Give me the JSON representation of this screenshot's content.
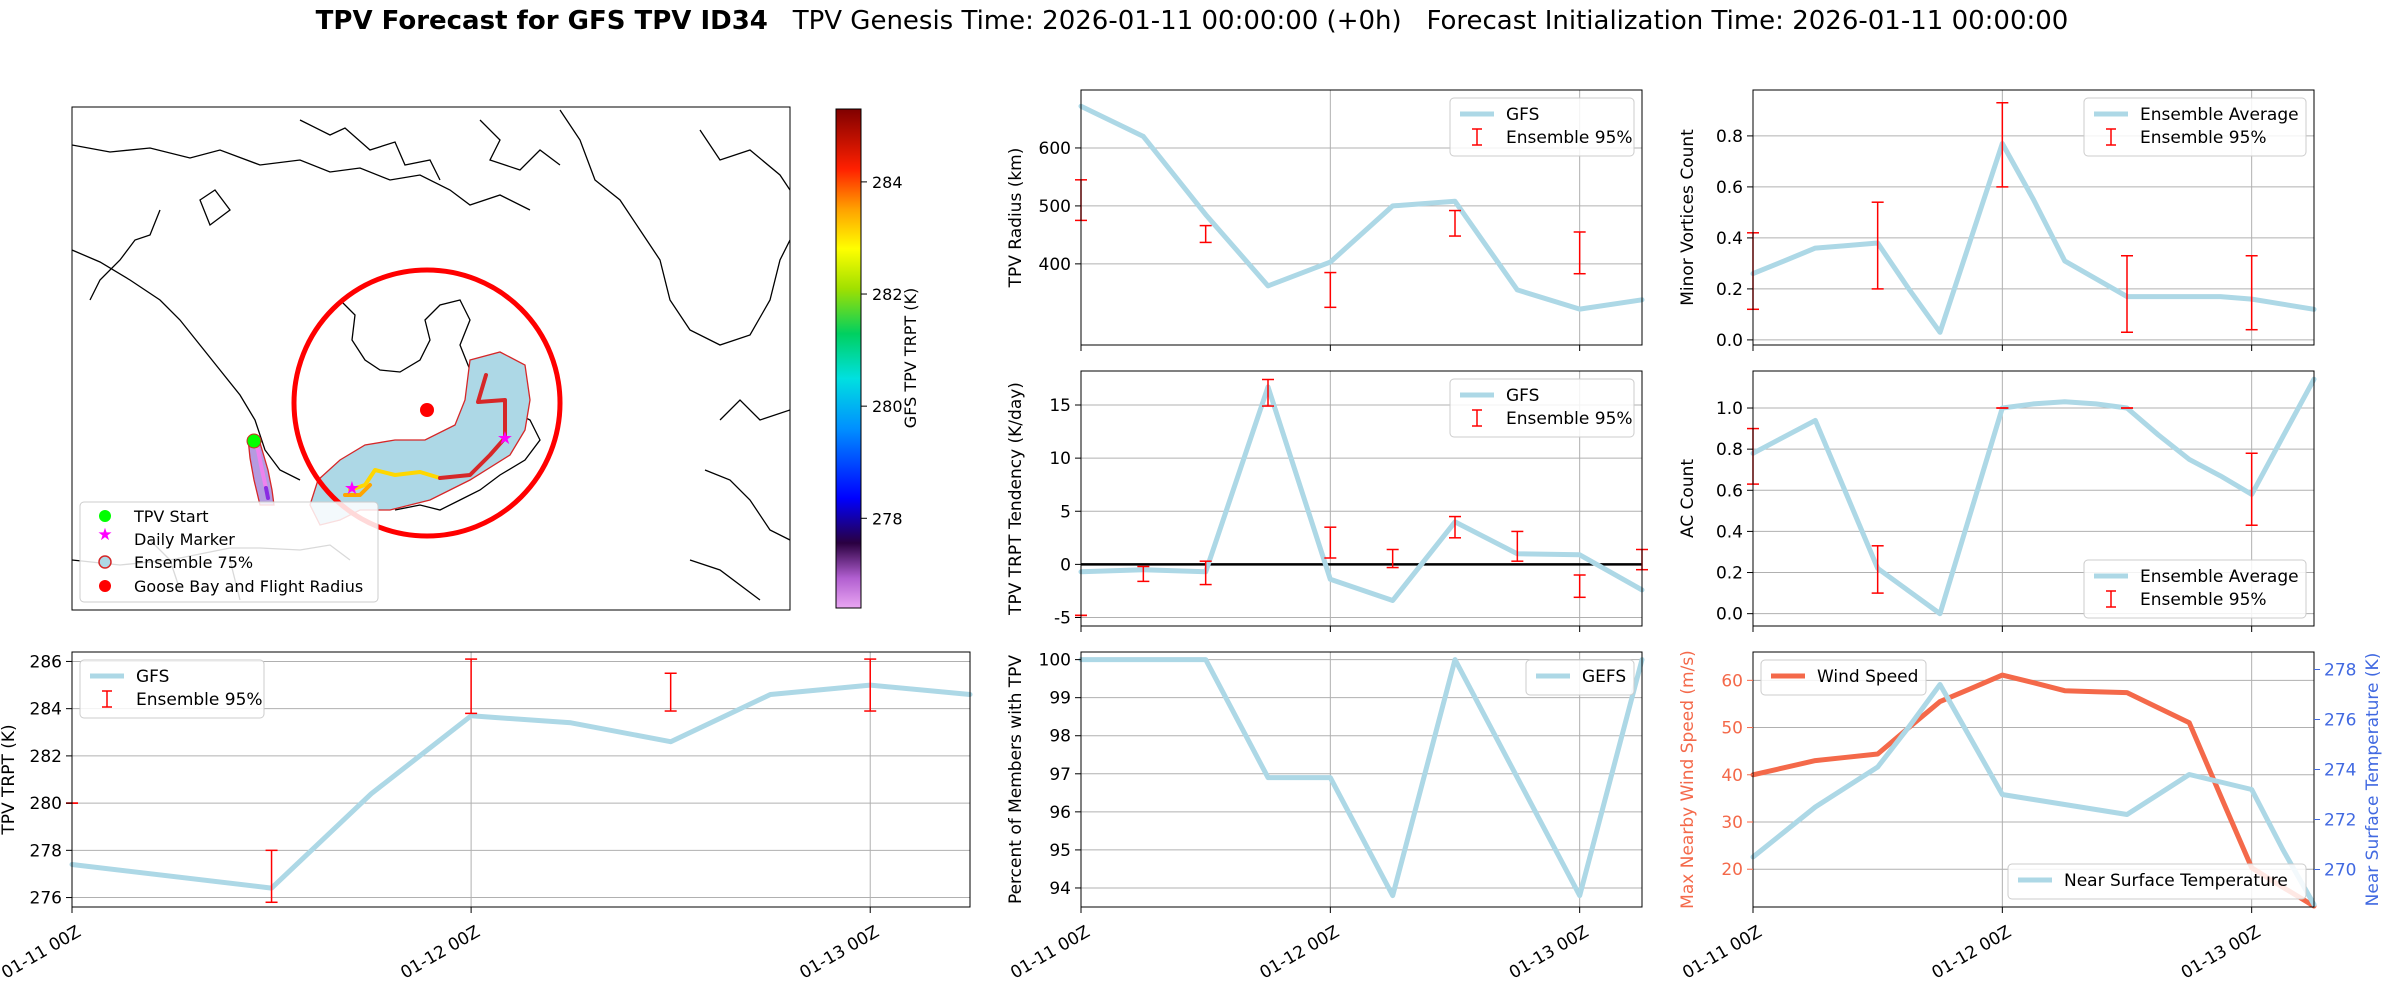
{
  "title": {
    "main": "TPV Forecast for GFS TPV ID34",
    "genesis": "TPV Genesis Time: 2026-01-11 00:00:00 (+0h)",
    "init": "Forecast Initialization Time: 2026-01-11 00:00:00"
  },
  "map": {
    "legend": [
      "TPV Start",
      "Daily Marker",
      "Ensemble 75%",
      "Goose Bay and Flight Radius"
    ],
    "colorbar": {
      "label": "GFS TPV TRPT (K)",
      "ticks": [
        278,
        280,
        282,
        284
      ],
      "range": [
        276.4,
        285.3
      ]
    },
    "track_colors": [
      "#ee82ee",
      "#cc66ff",
      "#8a2be2",
      "#ffd700",
      "#ffa500",
      "#d62728"
    ]
  },
  "chart_data": [
    {
      "id": "trpt",
      "type": "line",
      "xlabel": "",
      "ylabel": "TPV TRPT (K)",
      "xticks": [
        "01-11 00Z",
        "01-12 00Z",
        "01-13 00Z"
      ],
      "xlim": [
        0,
        54
      ],
      "ylim": [
        275.6,
        286.4
      ],
      "yticks": [
        276,
        278,
        280,
        282,
        284,
        286
      ],
      "grid": true,
      "legend": "upper-left",
      "series": [
        {
          "name": "GFS",
          "color": "#add8e6",
          "x": [
            0,
            12,
            18,
            24,
            30,
            36,
            42,
            48,
            54
          ],
          "y": [
            277.4,
            276.4,
            280.4,
            283.7,
            283.4,
            282.6,
            284.6,
            285.0,
            284.6
          ]
        }
      ],
      "errorbars": {
        "name": "Ensemble 95%",
        "color": "red",
        "items": [
          [
            0,
            280.0,
            280.0
          ],
          [
            12,
            275.8,
            278.0
          ],
          [
            24,
            283.8,
            286.1
          ],
          [
            36,
            283.9,
            285.5
          ],
          [
            48,
            283.9,
            286.1
          ]
        ]
      }
    },
    {
      "id": "radius",
      "type": "line",
      "xlabel": "",
      "ylabel": "TPV Radius (km)",
      "xticks": [
        "01-11 00Z",
        "01-12 00Z",
        "01-13 00Z"
      ],
      "xlim": [
        0,
        54
      ],
      "ylim": [
        260,
        700
      ],
      "yticks": [
        400,
        500,
        600
      ],
      "grid": true,
      "legend": "upper-right",
      "series": [
        {
          "name": "GFS",
          "color": "#add8e6",
          "x": [
            0,
            6,
            12,
            18,
            24,
            30,
            36,
            42,
            48,
            54
          ],
          "y": [
            672,
            620,
            485,
            362,
            403,
            500,
            508,
            355,
            322,
            338
          ]
        }
      ],
      "errorbars": {
        "name": "Ensemble 95%",
        "color": "red",
        "items": [
          [
            0,
            475,
            545
          ],
          [
            12,
            437,
            466
          ],
          [
            24,
            325,
            385
          ],
          [
            36,
            448,
            492
          ],
          [
            48,
            383,
            455
          ]
        ]
      }
    },
    {
      "id": "minor",
      "type": "line",
      "xlabel": "",
      "ylabel": "Minor Vortices Count",
      "xticks": [
        "01-11 00Z",
        "01-12 00Z",
        "01-13 00Z"
      ],
      "xlim": [
        0,
        54
      ],
      "ylim": [
        -0.02,
        0.98
      ],
      "yticks": [
        0.0,
        0.2,
        0.4,
        0.6,
        0.8
      ],
      "grid": true,
      "legend": "upper-right",
      "series": [
        {
          "name": "Ensemble Average",
          "color": "#add8e6",
          "x": [
            0,
            3,
            6,
            9,
            12,
            15,
            18,
            21,
            24,
            27,
            30,
            33,
            36,
            39,
            42,
            45,
            48,
            51,
            54
          ],
          "y": [
            0.26,
            0.31,
            0.36,
            0.37,
            0.38,
            0.2,
            0.03,
            0.4,
            0.77,
            0.55,
            0.31,
            0.24,
            0.17,
            0.17,
            0.17,
            0.17,
            0.16,
            0.14,
            0.12
          ]
        }
      ],
      "errorbars": {
        "name": "Ensemble 95%",
        "color": "red",
        "items": [
          [
            0,
            0.12,
            0.42
          ],
          [
            12,
            0.2,
            0.54
          ],
          [
            24,
            0.6,
            0.93
          ],
          [
            36,
            0.03,
            0.33
          ],
          [
            48,
            0.04,
            0.33
          ]
        ]
      }
    },
    {
      "id": "tendency",
      "type": "line",
      "xlabel": "",
      "ylabel": "TPV TRPT Tendency (K/day)",
      "xticks": [
        "01-11 00Z",
        "01-12 00Z",
        "01-13 00Z"
      ],
      "xlim": [
        0,
        54
      ],
      "ylim": [
        -5.8,
        18.2
      ],
      "yticks": [
        -5,
        0,
        5,
        10,
        15
      ],
      "grid": true,
      "legend": "upper-right",
      "zero_line": true,
      "series": [
        {
          "name": "GFS",
          "color": "#add8e6",
          "x": [
            0,
            6,
            12,
            18,
            24,
            30,
            36,
            42,
            48,
            54
          ],
          "y": [
            -0.7,
            -0.5,
            -0.7,
            16.7,
            -1.4,
            -3.4,
            4.0,
            1.0,
            0.9,
            -2.4
          ]
        }
      ],
      "errorbars": {
        "name": "Ensemble 95%",
        "color": "red",
        "items": [
          [
            0,
            -4.8,
            -4.8
          ],
          [
            6,
            -1.6,
            -0.2
          ],
          [
            12,
            -1.9,
            0.3
          ],
          [
            18,
            14.9,
            17.4
          ],
          [
            24,
            0.6,
            3.5
          ],
          [
            30,
            -0.3,
            1.4
          ],
          [
            36,
            2.5,
            4.5
          ],
          [
            42,
            0.3,
            3.1
          ],
          [
            48,
            -3.1,
            -1.0
          ],
          [
            54,
            -0.5,
            1.4
          ]
        ]
      }
    },
    {
      "id": "ac",
      "type": "line",
      "xlabel": "",
      "ylabel": "AC Count",
      "xticks": [
        "01-11 00Z",
        "01-12 00Z",
        "01-13 00Z"
      ],
      "xlim": [
        0,
        54
      ],
      "ylim": [
        -0.06,
        1.18
      ],
      "yticks": [
        0.0,
        0.2,
        0.4,
        0.6,
        0.8,
        1.0
      ],
      "grid": true,
      "legend": "lower-right",
      "series": [
        {
          "name": "Ensemble Average",
          "color": "#add8e6",
          "x": [
            0,
            3,
            6,
            9,
            12,
            15,
            18,
            21,
            24,
            27,
            30,
            33,
            36,
            39,
            42,
            45,
            48,
            51,
            54
          ],
          "y": [
            0.78,
            0.86,
            0.94,
            0.58,
            0.22,
            0.11,
            0.0,
            0.5,
            1.0,
            1.02,
            1.03,
            1.02,
            1.0,
            0.87,
            0.75,
            0.67,
            0.58,
            0.86,
            1.14
          ]
        }
      ],
      "errorbars": {
        "name": "Ensemble 95%",
        "color": "red",
        "items": [
          [
            0,
            0.63,
            0.9
          ],
          [
            12,
            0.1,
            0.33
          ],
          [
            24,
            1.0,
            1.0
          ],
          [
            36,
            1.0,
            1.0
          ],
          [
            48,
            0.43,
            0.78
          ]
        ]
      }
    },
    {
      "id": "members",
      "type": "line",
      "xlabel": "",
      "ylabel": "Percent of Members with TPV",
      "xticks": [
        "01-11 00Z",
        "01-12 00Z",
        "01-13 00Z"
      ],
      "xlim": [
        0,
        54
      ],
      "ylim": [
        93.5,
        100.2
      ],
      "yticks": [
        94,
        95,
        96,
        97,
        98,
        99,
        100
      ],
      "grid": true,
      "legend": "upper-right",
      "series": [
        {
          "name": "GEFS",
          "color": "#add8e6",
          "x": [
            0,
            6,
            12,
            18,
            24,
            30,
            36,
            42,
            48,
            54
          ],
          "y": [
            100,
            100,
            100,
            96.9,
            96.9,
            93.8,
            100,
            96.9,
            93.8,
            100
          ]
        }
      ]
    },
    {
      "id": "wind",
      "type": "line",
      "xlabel": "",
      "ylabel": "Max Nearby Wind Speed (m/s)",
      "ylabel2": "Near Surface Temperature (K)",
      "xticks": [
        "01-11 00Z",
        "01-12 00Z",
        "01-13 00Z"
      ],
      "xlim": [
        0,
        54
      ],
      "ylim": [
        12,
        66
      ],
      "yticks": [
        20,
        30,
        40,
        50,
        60
      ],
      "ylim2": [
        268.5,
        278.7
      ],
      "yticks2": [
        270,
        272,
        274,
        276,
        278
      ],
      "grid": true,
      "legend": "upper-left",
      "legend2": "lower-right",
      "series": [
        {
          "name": "Wind Speed",
          "color": "#f4694a",
          "axis": "left",
          "x": [
            0,
            3,
            6,
            9,
            12,
            15,
            18,
            21,
            24,
            27,
            30,
            33,
            36,
            39,
            42,
            45,
            48,
            51,
            54
          ],
          "y": [
            40,
            41.5,
            43,
            43.7,
            44.4,
            50,
            55.5,
            58.3,
            61.1,
            59.5,
            57.8,
            57.6,
            57.4,
            54.2,
            51,
            35.6,
            20.3,
            16.2,
            12.2
          ]
        },
        {
          "name": "Near Surface Temperature",
          "color": "#add8e6",
          "axis": "right",
          "x": [
            0,
            3,
            6,
            9,
            12,
            15,
            18,
            21,
            24,
            27,
            30,
            33,
            36,
            39,
            42,
            45,
            48,
            51,
            54
          ],
          "y": [
            270.5,
            271.5,
            272.5,
            273.3,
            274.1,
            275.7,
            277.4,
            275.2,
            273,
            272.8,
            272.6,
            272.4,
            272.2,
            273,
            273.8,
            273.5,
            273.2,
            270.8,
            268.6
          ]
        }
      ]
    }
  ]
}
